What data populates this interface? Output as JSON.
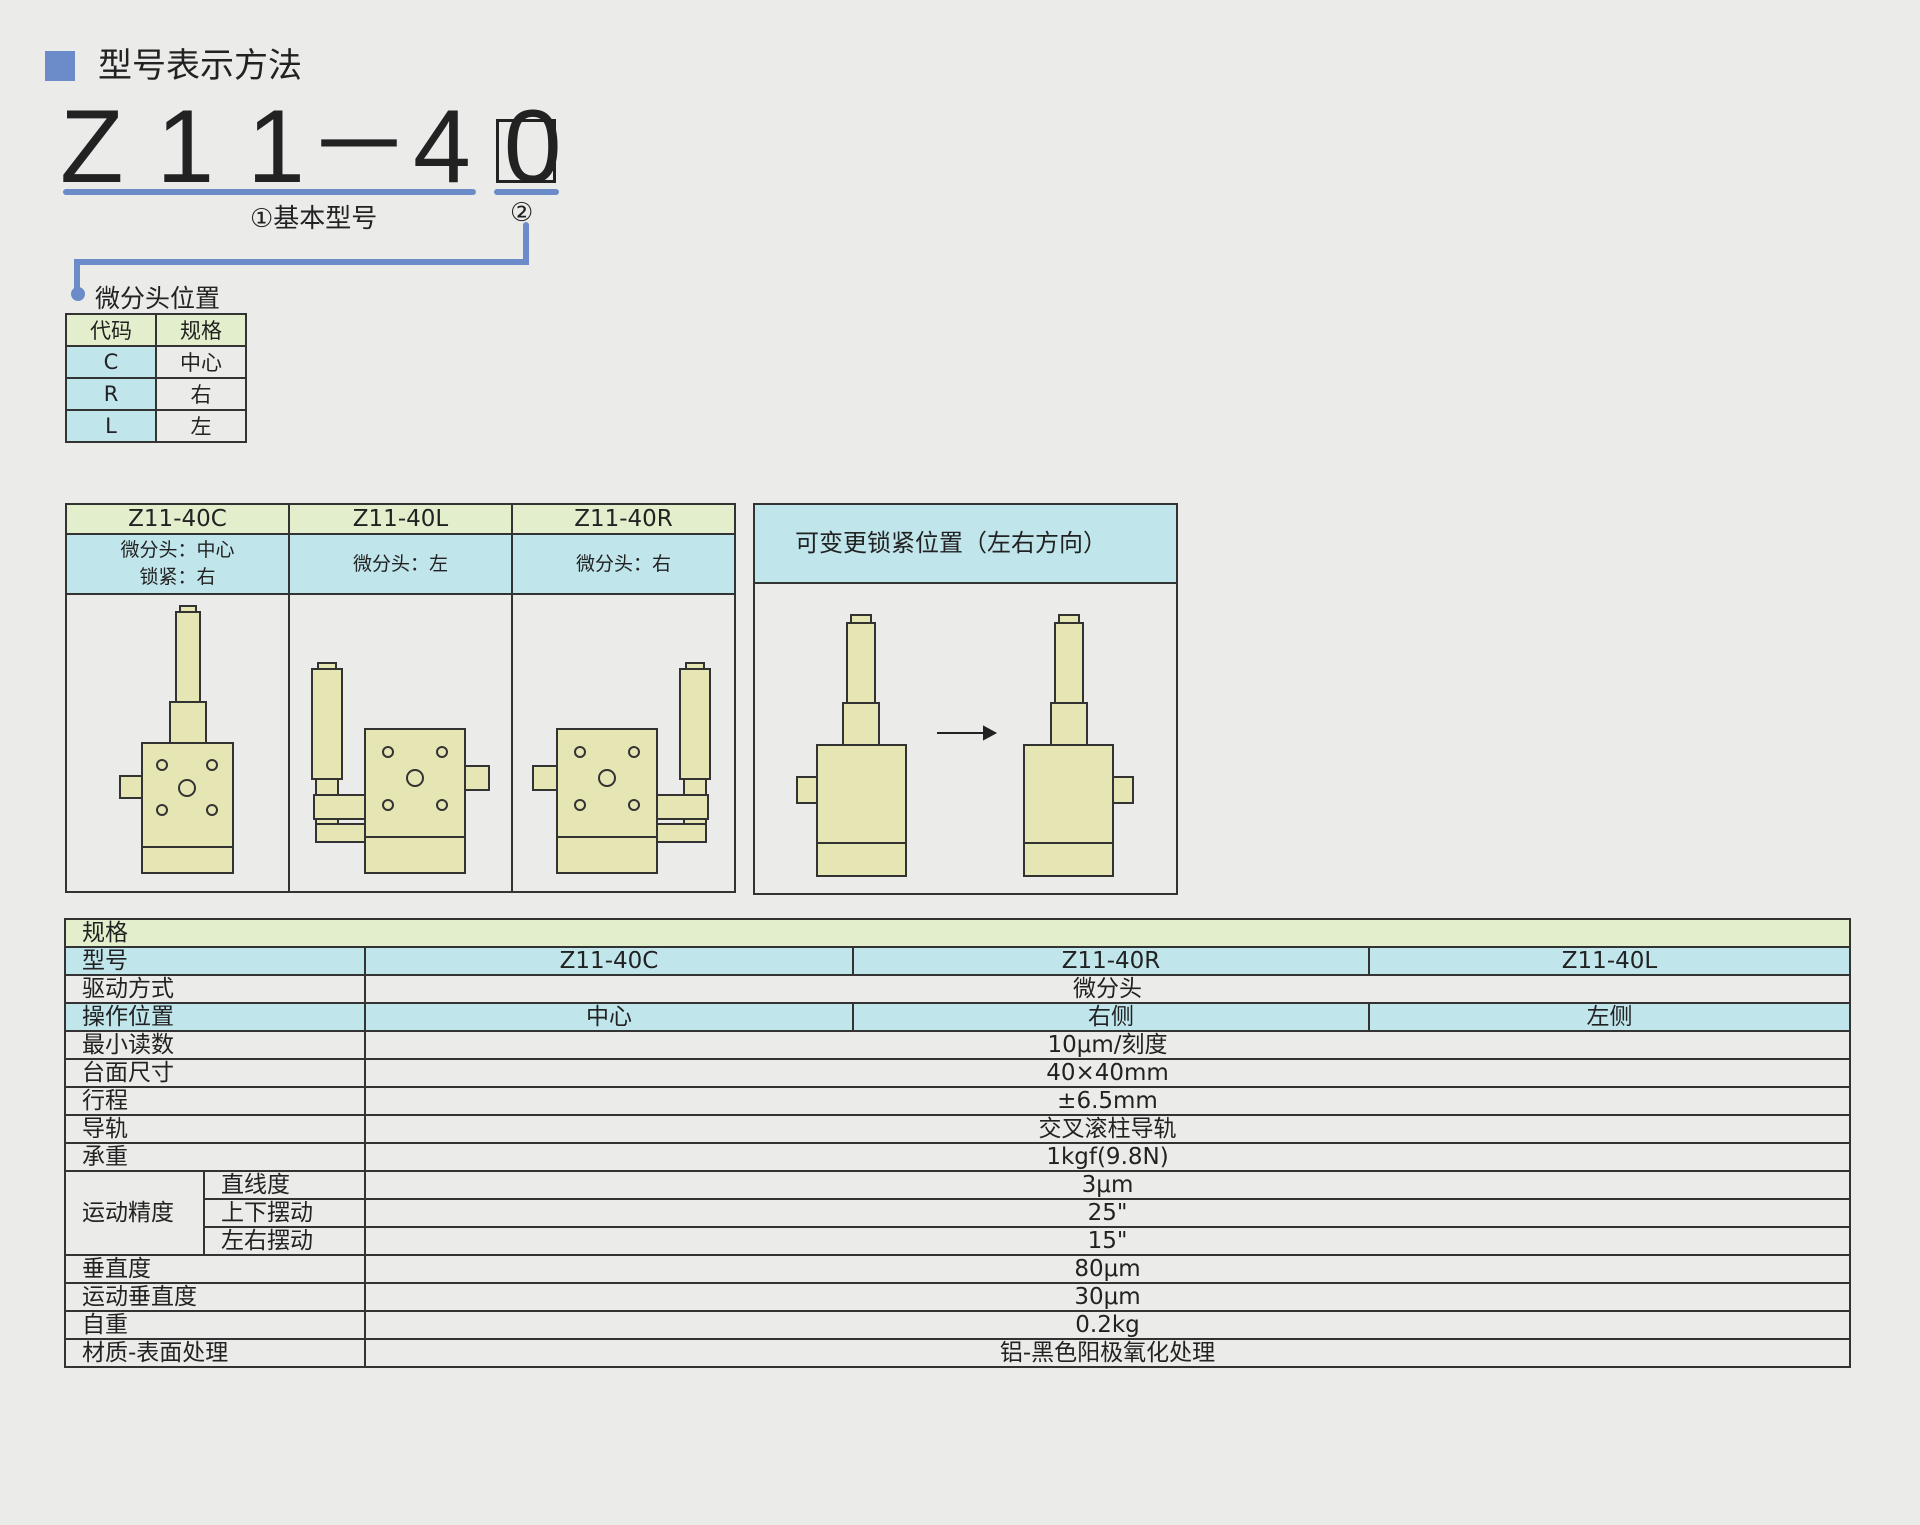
{
  "header": {
    "title": "型号表示方法",
    "accent": "#6b8bc9"
  },
  "model_code": {
    "code": "Z 1 1－4 0",
    "basic_label": "①基本型号",
    "option_label": "②"
  },
  "micrometer_position": {
    "title": "微分头位置",
    "headers": [
      "代码",
      "规格"
    ],
    "rows": [
      [
        "C",
        "中心"
      ],
      [
        "R",
        "右"
      ],
      [
        "L",
        "左"
      ]
    ]
  },
  "products": [
    {
      "model": "Z11-40C",
      "desc1": "微分头：中心",
      "desc2": "锁紧：右"
    },
    {
      "model": "Z11-40L",
      "desc1": "微分头：左",
      "desc2": ""
    },
    {
      "model": "Z11-40R",
      "desc1": "微分头：右",
      "desc2": ""
    }
  ],
  "lock_panel": {
    "title": "可变更锁紧位置（左右方向）",
    "arrow_icon": "arrow-right"
  },
  "spec": {
    "title": "规格",
    "model_label": "型号",
    "models": [
      "Z11-40C",
      "Z11-40R",
      "Z11-40L"
    ],
    "drive_label": "驱动方式",
    "drive": "微分头",
    "op_label": "操作位置",
    "ops": [
      "中心",
      "右侧",
      "左侧"
    ],
    "rows": [
      {
        "label": "最小读数",
        "value": "10μm/刻度"
      },
      {
        "label": "台面尺寸",
        "value": "40×40mm"
      },
      {
        "label": "行程",
        "value": "±6.5mm"
      },
      {
        "label": "导轨",
        "value": "交叉滚柱导轨"
      },
      {
        "label": "承重",
        "value": "1kgf(9.8N)"
      }
    ],
    "accuracy_label": "运动精度",
    "accuracy": [
      {
        "label": "直线度",
        "value": "3μm"
      },
      {
        "label": "上下摆动",
        "value": "25\""
      },
      {
        "label": "左右摆动",
        "value": "15\""
      }
    ],
    "rows2": [
      {
        "label": "垂直度",
        "value": "80μm"
      },
      {
        "label": "运动垂直度",
        "value": "30μm"
      },
      {
        "label": "自重",
        "value": "0.2kg"
      },
      {
        "label": "材质-表面处理",
        "value": "铝-黑色阳极氧化处理"
      }
    ]
  },
  "colors": {
    "green": "#e3efcc",
    "blue": "#c0e6ec",
    "part": "#e6e6b4"
  }
}
